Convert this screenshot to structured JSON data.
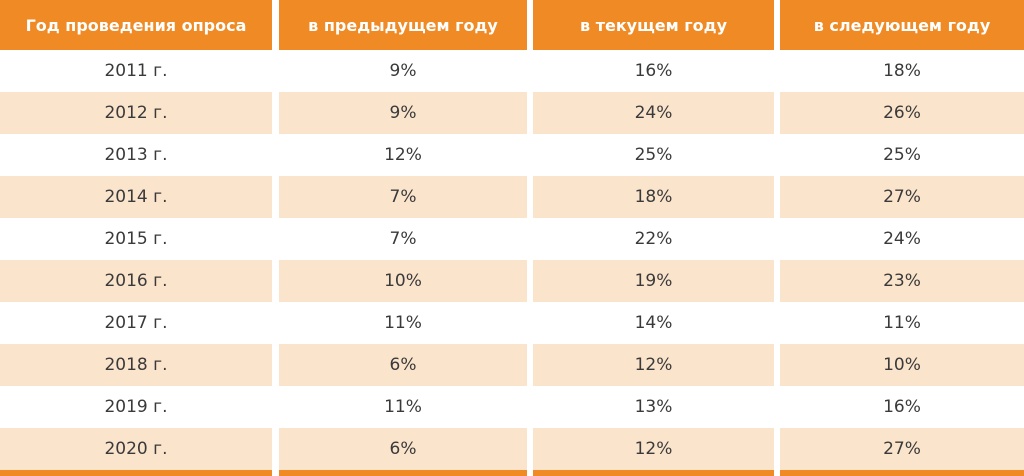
{
  "table": {
    "headers": [
      "Год проведения опроса",
      "в предыдущем году",
      "в текущем году",
      "в следующем году"
    ],
    "rows": [
      [
        "2011 г.",
        "9%",
        "16%",
        "18%"
      ],
      [
        "2012 г.",
        "9%",
        "24%",
        "26%"
      ],
      [
        "2013 г.",
        "12%",
        "25%",
        "25%"
      ],
      [
        "2014 г.",
        "7%",
        "18%",
        "27%"
      ],
      [
        "2015 г.",
        "7%",
        "22%",
        "24%"
      ],
      [
        "2016 г.",
        "10%",
        "19%",
        "23%"
      ],
      [
        "2017 г.",
        "11%",
        "14%",
        "11%"
      ],
      [
        "2018 г.",
        "6%",
        "12%",
        "10%"
      ],
      [
        "2019 г.",
        "11%",
        "13%",
        "16%"
      ],
      [
        "2020 г.",
        "6%",
        "12%",
        "27%"
      ]
    ],
    "colors": {
      "header_bg": "#ef8a25",
      "alt_row_bg": "#fbe4cc"
    }
  }
}
